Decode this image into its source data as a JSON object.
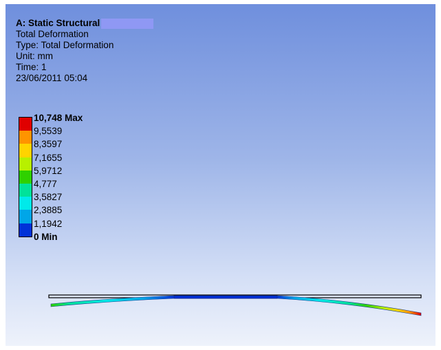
{
  "header": {
    "analysis_title": "A: Static Structural",
    "result_name": "Total Deformation",
    "type_line": "Type: Total Deformation",
    "unit_line": "Unit: mm",
    "time_line": "Time: 1",
    "date_line": "23/06/2011 05:04"
  },
  "legend": {
    "labels": [
      "10,748 Max",
      "9,5539",
      "8,3597",
      "7,1655",
      "5,9712",
      "4,777",
      "3,5827",
      "2,3885",
      "1,1942",
      "0 Min"
    ],
    "colors": [
      "#e00000",
      "#ff9400",
      "#ffd400",
      "#b8f000",
      "#2fd100",
      "#00e29a",
      "#00eaea",
      "#00a6e8",
      "#0032d8"
    ]
  },
  "colors": {
    "background_top": "#6f8fdd",
    "background_bottom": "#eef2fb",
    "title_highlight": "#8f98f4"
  }
}
